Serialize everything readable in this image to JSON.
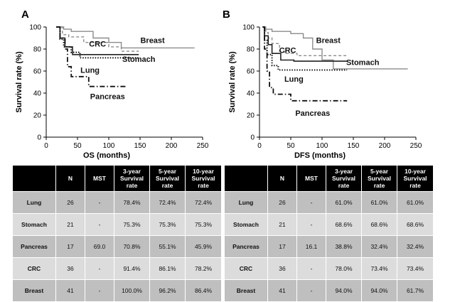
{
  "panels": [
    {
      "id": "A",
      "label": "A",
      "chart_data": {
        "type": "line",
        "title": "",
        "xlabel": "OS (months)",
        "ylabel": "Survival rate (%)",
        "xlim": [
          0,
          250
        ],
        "ylim": [
          0,
          100
        ],
        "xticks": [
          "0",
          "50",
          "100",
          "150",
          "200",
          "250"
        ],
        "yticks": [
          "0",
          "20",
          "40",
          "60",
          "80",
          "100"
        ],
        "series": [
          {
            "name": "Breast",
            "style": "solid-light",
            "x": [
              16,
              28,
              28,
              40,
              40,
              75,
              75,
              100,
              100,
              120,
              120,
              237
            ],
            "y": [
              100,
              100,
              98,
              98,
              96,
              96,
              90,
              90,
              86,
              86,
              81,
              81
            ]
          },
          {
            "name": "CRC",
            "style": "dashed",
            "x": [
              16,
              26,
              26,
              36,
              36,
              60,
              60,
              100,
              100,
              120,
              120,
              148
            ],
            "y": [
              100,
              100,
              93,
              93,
              91,
              91,
              86,
              86,
              82,
              82,
              78,
              78
            ]
          },
          {
            "name": "Stomach",
            "style": "solid-dark",
            "x": [
              16,
              22,
              22,
              30,
              30,
              42,
              42,
              148
            ],
            "y": [
              100,
              100,
              90,
              90,
              82,
              82,
              75,
              75
            ]
          },
          {
            "name": "Lung",
            "style": "dotted",
            "x": [
              16,
              22,
              22,
              28,
              28,
              40,
              40,
              54,
              54,
              148
            ],
            "y": [
              100,
              100,
              89,
              89,
              82,
              82,
              77,
              77,
              72,
              72
            ]
          },
          {
            "name": "Pancreas",
            "style": "dashdot",
            "x": [
              16,
              22,
              22,
              30,
              30,
              34,
              34,
              40,
              40,
              68,
              68,
              100,
              100,
              130
            ],
            "y": [
              100,
              100,
              90,
              90,
              80,
              80,
              64,
              64,
              55,
              55,
              46,
              46,
              46,
              46
            ]
          }
        ],
        "annotations": [
          {
            "text": "Breast",
            "x": 170,
            "y": 88
          },
          {
            "text": "CRC",
            "x": 82,
            "y": 85
          },
          {
            "text": "Stomach",
            "x": 148,
            "y": 71
          },
          {
            "text": "Lung",
            "x": 70,
            "y": 61
          },
          {
            "text": "Pancreas",
            "x": 98,
            "y": 37
          }
        ]
      },
      "table": {
        "headers": [
          "",
          "N",
          "MST",
          "3-year Survival rate",
          "5-year Survival rate",
          "10-year Survival rate"
        ],
        "rows": [
          [
            "Lung",
            "26",
            "-",
            "78.4%",
            "72.4%",
            "72.4%"
          ],
          [
            "Stomach",
            "21",
            "-",
            "75.3%",
            "75.3%",
            "75.3%"
          ],
          [
            "Pancreas",
            "17",
            "69.0",
            "70.8%",
            "55.1%",
            "45.9%"
          ],
          [
            "CRC",
            "36",
            "-",
            "91.4%",
            "86.1%",
            "78.2%"
          ],
          [
            "Breast",
            "41",
            "-",
            "100.0%",
            "96.2%",
            "86.4%"
          ]
        ]
      }
    },
    {
      "id": "B",
      "label": "B",
      "chart_data": {
        "type": "line",
        "title": "",
        "xlabel": "DFS (months)",
        "ylabel": "Survival rate (%)",
        "xlim": [
          0,
          250
        ],
        "ylim": [
          0,
          100
        ],
        "xticks": [
          "0",
          "50",
          "100",
          "150",
          "200",
          "250"
        ],
        "yticks": [
          "0",
          "20",
          "40",
          "60",
          "80",
          "100"
        ],
        "series": [
          {
            "name": "Breast",
            "style": "solid-light",
            "x": [
              5,
              10,
              10,
              20,
              20,
              50,
              50,
              70,
              70,
              85,
              85,
              100,
              100,
              118,
              118,
              237
            ],
            "y": [
              100,
              100,
              98,
              98,
              96,
              96,
              94,
              94,
              90,
              90,
              80,
              80,
              70,
              70,
              62,
              62
            ]
          },
          {
            "name": "CRC",
            "style": "dashed",
            "x": [
              5,
              10,
              10,
              14,
              14,
              20,
              20,
              32,
              32,
              40,
              40,
              60,
              60,
              140
            ],
            "y": [
              100,
              100,
              95,
              95,
              90,
              90,
              85,
              85,
              78,
              78,
              76,
              76,
              74,
              74
            ]
          },
          {
            "name": "Stomach",
            "style": "solid-dark",
            "x": [
              5,
              8,
              8,
              14,
              14,
              20,
              20,
              34,
              34,
              55,
              55,
              95,
              95,
              140
            ],
            "y": [
              100,
              100,
              92,
              92,
              84,
              84,
              76,
              76,
              70,
              70,
              69,
              69,
              69,
              69
            ]
          },
          {
            "name": "Lung",
            "style": "dotted",
            "x": [
              5,
              8,
              8,
              12,
              12,
              20,
              20,
              30,
              30,
              140
            ],
            "y": [
              100,
              100,
              88,
              88,
              75,
              75,
              65,
              65,
              61,
              61
            ]
          },
          {
            "name": "Pancreas",
            "style": "dashdot",
            "x": [
              5,
              8,
              8,
              12,
              12,
              16,
              16,
              22,
              22,
              50,
              50,
              140
            ],
            "y": [
              100,
              100,
              80,
              80,
              60,
              60,
              45,
              45,
              39,
              39,
              33,
              33
            ]
          }
        ],
        "annotations": [
          {
            "text": "Breast",
            "x": 110,
            "y": 88
          },
          {
            "text": "CRC",
            "x": 45,
            "y": 79
          },
          {
            "text": "Stomach",
            "x": 165,
            "y": 68
          },
          {
            "text": "Lung",
            "x": 55,
            "y": 53
          },
          {
            "text": "Pancreas",
            "x": 85,
            "y": 22
          }
        ]
      },
      "table": {
        "headers": [
          "",
          "N",
          "MST",
          "3-year Survival rate",
          "5-year Survival rate",
          "10-year Survival rate"
        ],
        "rows": [
          [
            "Lung",
            "26",
            "-",
            "61.0%",
            "61.0%",
            "61.0%"
          ],
          [
            "Stomach",
            "21",
            "-",
            "68.6%",
            "68.6%",
            "68.6%"
          ],
          [
            "Pancreas",
            "17",
            "16.1",
            "38.8%",
            "32.4%",
            "32.4%"
          ],
          [
            "CRC",
            "36",
            "-",
            "78.0%",
            "73.4%",
            "73.4%"
          ],
          [
            "Breast",
            "41",
            "-",
            "94.0%",
            "94.0%",
            "61.7%"
          ]
        ]
      }
    }
  ]
}
